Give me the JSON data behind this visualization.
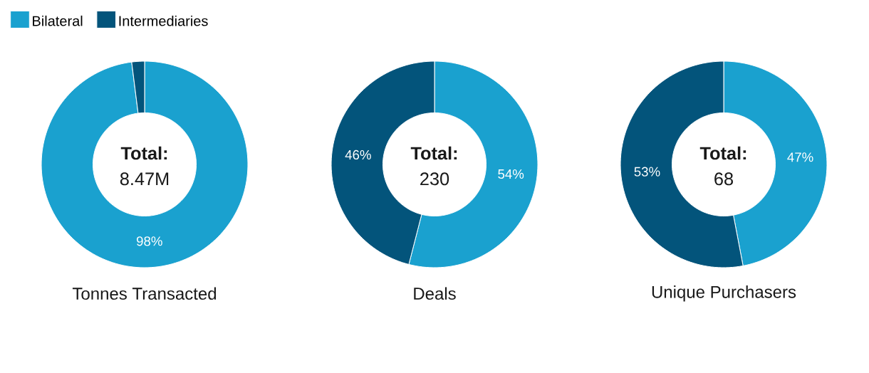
{
  "chart_data": [
    {
      "type": "donut",
      "title": "Tonnes Transacted",
      "categories": [
        "Bilateral",
        "Intermediaries"
      ],
      "values": [
        98,
        2
      ],
      "colors": [
        "#1aa1cf",
        "#03547b"
      ],
      "value_labels": [
        "98%",
        null
      ],
      "annotations": [
        "Total:",
        "8.47M"
      ],
      "legend": "top left"
    },
    {
      "type": "donut",
      "title": "Deals",
      "values": [
        54,
        46
      ],
      "colors": [
        "#1aa1cf",
        "#03547b"
      ],
      "value_labels": [
        "54%",
        "46%"
      ],
      "annotations": [
        "Total:",
        "230"
      ]
    },
    {
      "type": "donut",
      "title": "Unique Purchasers",
      "values": [
        47,
        53
      ],
      "colors": [
        "#1aa1cf",
        "#03547b"
      ],
      "value_labels": [
        "47%",
        "53%"
      ],
      "annotations": [
        "Total:",
        "68"
      ]
    }
  ]
}
